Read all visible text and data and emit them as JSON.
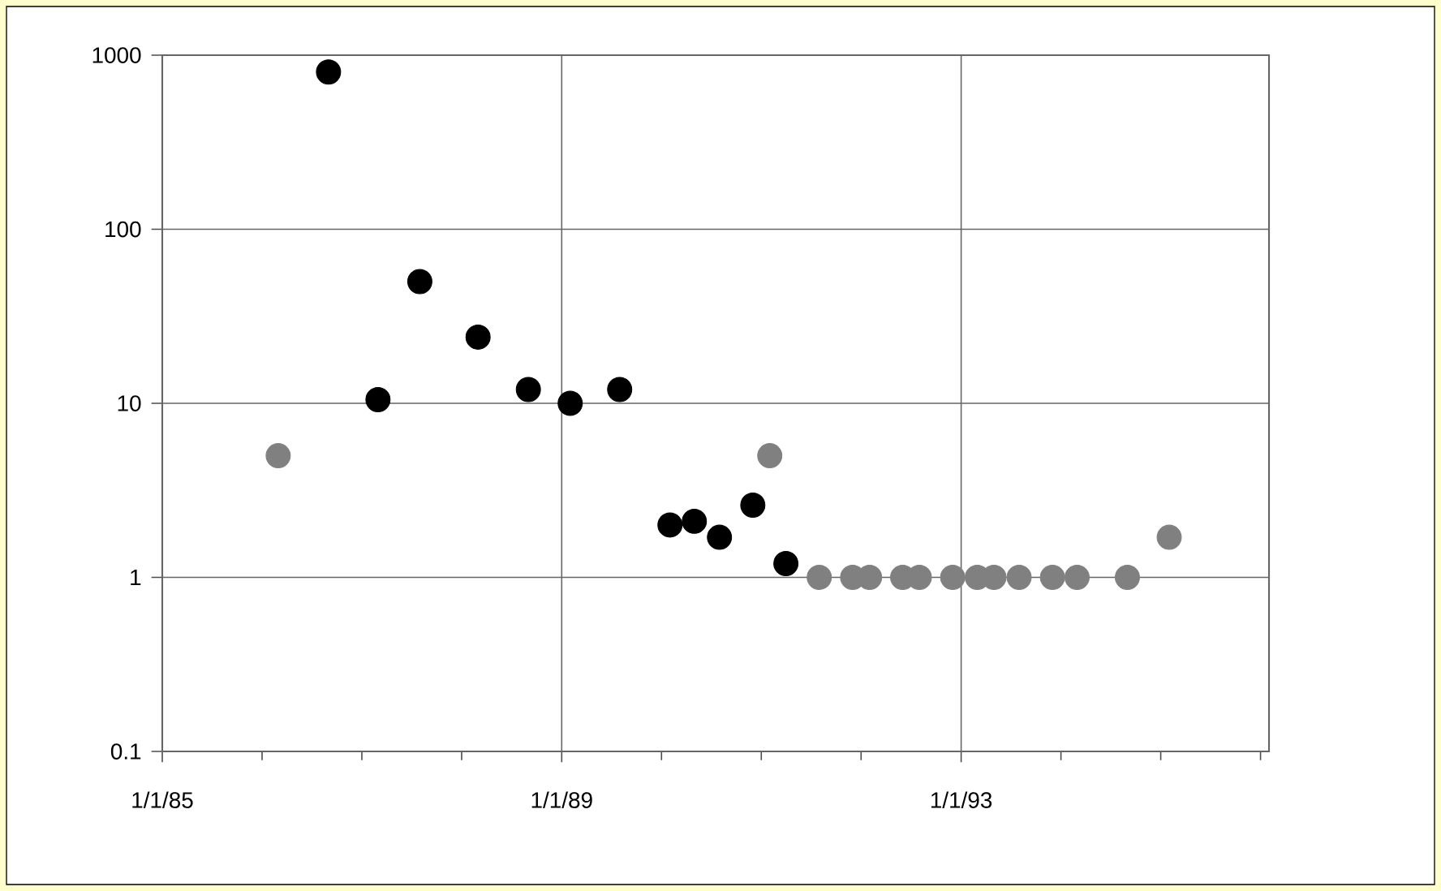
{
  "chart_data": {
    "type": "scatter",
    "log": "y",
    "grid": true,
    "marker": "circle",
    "xlim": [
      "1985-01-01",
      "1996-02-01"
    ],
    "xticks": [
      {
        "value": "1985-01-01",
        "label": "1/1/85"
      },
      {
        "value": "1986-01-01",
        "label": null
      },
      {
        "value": "1987-01-01",
        "label": null
      },
      {
        "value": "1988-01-01",
        "label": null
      },
      {
        "value": "1989-01-01",
        "label": "1/1/89"
      },
      {
        "value": "1990-01-01",
        "label": null
      },
      {
        "value": "1991-01-01",
        "label": null
      },
      {
        "value": "1992-01-01",
        "label": null
      },
      {
        "value": "1993-01-01",
        "label": "1/1/93"
      },
      {
        "value": "1994-01-01",
        "label": null
      },
      {
        "value": "1995-01-01",
        "label": null
      },
      {
        "value": "1996-01-01",
        "label": null
      }
    ],
    "ylim": [
      0.1,
      1000
    ],
    "yticks": [
      0.1,
      1,
      10,
      100,
      1000
    ],
    "series": [
      {
        "color": "#808080",
        "x": [
          "1986-03",
          "1991-02",
          "1991-08",
          "1991-12",
          "1992-02",
          "1992-06",
          "1992-08",
          "1992-12",
          "1993-03",
          "1993-05",
          "1993-08",
          "1993-12",
          "1994-03",
          "1994-09",
          "1995-02"
        ],
        "values": [
          5,
          5,
          1,
          1,
          1,
          1,
          1,
          1,
          1,
          1,
          1,
          1,
          1,
          1,
          1.7
        ]
      },
      {
        "color": "#000000",
        "x": [
          "1986-09",
          "1987-03",
          "1987-08",
          "1988-03",
          "1988-09",
          "1989-02",
          "1989-08",
          "1990-02",
          "1990-05",
          "1990-08",
          "1990-12",
          "1991-04"
        ],
        "values": [
          800,
          10.5,
          50,
          24,
          12,
          10,
          12,
          2,
          2.1,
          1.7,
          2.6,
          1.2
        ]
      }
    ]
  }
}
